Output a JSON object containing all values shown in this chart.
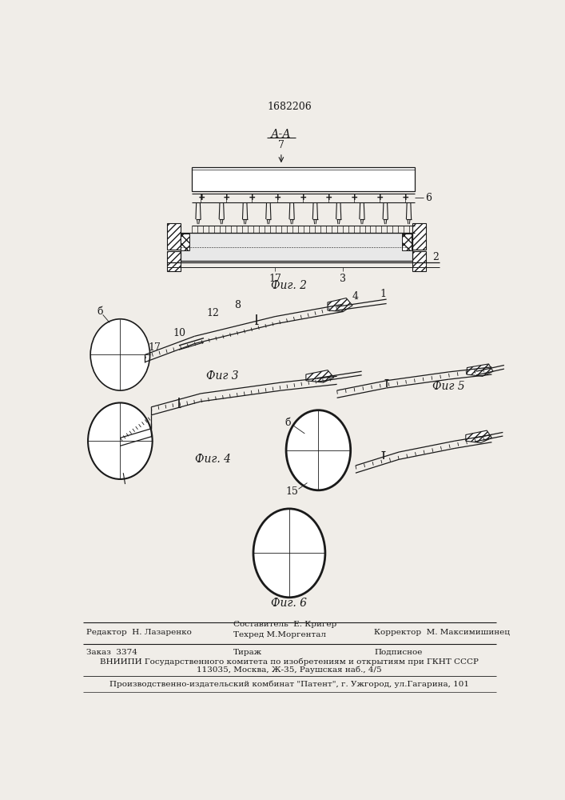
{
  "title": "1682206",
  "bg_color": "#f0ede8",
  "fig2_label": "Фиг. 2",
  "fig3_label": "Фиг 3",
  "fig4_label": "Фиг. 4",
  "fig5_label": "Фиг 5",
  "fig6_label": "Фиг. 6",
  "section_label": "А-А",
  "line_color": "#1a1a1a",
  "label_7": "7",
  "label_6a": "6",
  "label_6b": "б",
  "label_2": "2",
  "label_3": "3",
  "label_17a": "17",
  "label_17b": "17",
  "label_1": "1",
  "label_4": "4",
  "label_8": "8",
  "label_10": "10",
  "label_12": "12",
  "label_15": "15",
  "footer_line1_left": "Редактор  Н. Лазаренко",
  "footer_line1_center": "Составитель  Е. Кригер\nТехред М.Моргентал",
  "footer_line1_right": "Корректор  М. Максимишинец",
  "footer_line2_left": "Заказ  3374",
  "footer_line2_center": "Тираж",
  "footer_line2_right": "Подписное",
  "footer_line3": "ВНИИПИ Государственного комитета по изобретениям и открытиям при ГКНТ СССР",
  "footer_line4": "113035, Москва, Ж-35, Раушская наб., 4/5",
  "footer_line5": "Производственно-издательский комбинат \"Патент\", г. Ужгород, ул.Гагарина, 101"
}
